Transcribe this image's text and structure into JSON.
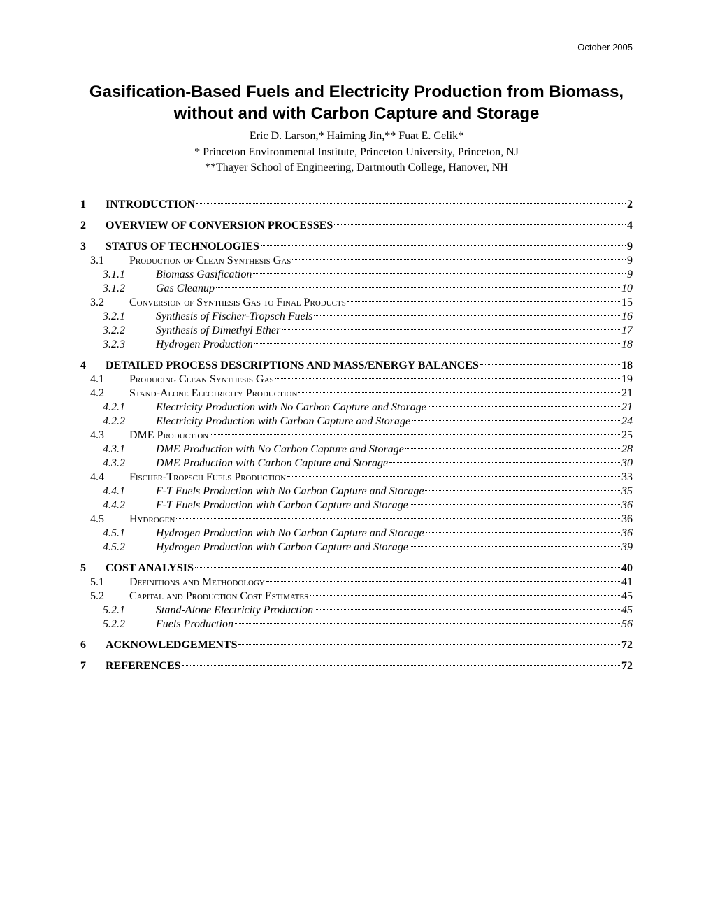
{
  "header": {
    "date": "October 2005"
  },
  "title": "Gasification-Based Fuels and Electricity Production from Biomass, without and with Carbon Capture and Storage",
  "authors": "Eric D. Larson,* Haiming Jin,** Fuat E. Celik*",
  "affiliations": [
    "* Princeton Environmental Institute, Princeton University, Princeton, NJ",
    "**Thayer School of Engineering, Dartmouth College, Hanover, NH"
  ],
  "styles": {
    "page_bg": "#ffffff",
    "text_color": "#000000",
    "title_font": "Arial",
    "title_fontsize_pt": 18,
    "title_weight": "bold",
    "body_font": "Times New Roman",
    "body_fontsize_pt": 12,
    "date_font": "Arial",
    "date_fontsize_pt": 10,
    "leader_style": "dotted",
    "l1_style": {
      "bold": true,
      "uppercase": true
    },
    "l2_style": {
      "small_caps": true
    },
    "l3_style": {
      "italic": true
    }
  },
  "toc": [
    {
      "level": 1,
      "num": "1",
      "label": "Introduction",
      "page": "2"
    },
    {
      "level": 1,
      "num": "2",
      "label": "Overview of Conversion Processes",
      "page": "4"
    },
    {
      "level": 1,
      "num": "3",
      "label": "Status of Technologies",
      "page": "9"
    },
    {
      "level": 2,
      "num": "3.1",
      "label": "Production of Clean Synthesis Gas",
      "page": "9"
    },
    {
      "level": 3,
      "num": "3.1.1",
      "label": "Biomass Gasification",
      "page": "9"
    },
    {
      "level": 3,
      "num": "3.1.2",
      "label": "Gas Cleanup",
      "page": "10"
    },
    {
      "level": 2,
      "num": "3.2",
      "label": "Conversion of Synthesis Gas to Final Products",
      "page": "15"
    },
    {
      "level": 3,
      "num": "3.2.1",
      "label": "Synthesis of Fischer-Tropsch Fuels",
      "page": "16"
    },
    {
      "level": 3,
      "num": "3.2.2",
      "label": "Synthesis of Dimethyl Ether",
      "page": "17"
    },
    {
      "level": 3,
      "num": "3.2.3",
      "label": "Hydrogen Production",
      "page": "18"
    },
    {
      "level": 1,
      "num": "4",
      "label": "Detailed Process Descriptions and Mass/Energy Balances",
      "page": "18"
    },
    {
      "level": 2,
      "num": "4.1",
      "label": "Producing Clean Synthesis Gas",
      "page": "19"
    },
    {
      "level": 2,
      "num": "4.2",
      "label": "Stand-Alone Electricity Production",
      "page": "21"
    },
    {
      "level": 3,
      "num": "4.2.1",
      "label": "Electricity Production with No Carbon Capture and Storage",
      "page": "21"
    },
    {
      "level": 3,
      "num": "4.2.2",
      "label": "Electricity Production with Carbon Capture and Storage",
      "page": "24"
    },
    {
      "level": 2,
      "num": "4.3",
      "label": "DME Production",
      "page": "25"
    },
    {
      "level": 3,
      "num": "4.3.1",
      "label": "DME Production with No Carbon Capture and Storage",
      "page": "28"
    },
    {
      "level": 3,
      "num": "4.3.2",
      "label": "DME Production with Carbon Capture and Storage",
      "page": "30"
    },
    {
      "level": 2,
      "num": "4.4",
      "label": "Fischer-Tropsch Fuels Production",
      "page": "33"
    },
    {
      "level": 3,
      "num": "4.4.1",
      "label": "F-T Fuels Production with No Carbon Capture and Storage",
      "page": "35"
    },
    {
      "level": 3,
      "num": "4.4.2",
      "label": "F-T Fuels Production with Carbon Capture and Storage",
      "page": "36"
    },
    {
      "level": 2,
      "num": "4.5",
      "label": "Hydrogen",
      "page": "36"
    },
    {
      "level": 3,
      "num": "4.5.1",
      "label": "Hydrogen Production with No Carbon Capture and Storage",
      "page": "36"
    },
    {
      "level": 3,
      "num": "4.5.2",
      "label": "Hydrogen Production with Carbon Capture and Storage",
      "page": "39"
    },
    {
      "level": 1,
      "num": "5",
      "label": "Cost Analysis",
      "page": "40"
    },
    {
      "level": 2,
      "num": "5.1",
      "label": "Definitions and Methodology",
      "page": "41"
    },
    {
      "level": 2,
      "num": "5.2",
      "label": "Capital and Production Cost Estimates",
      "page": "45"
    },
    {
      "level": 3,
      "num": "5.2.1",
      "label": "Stand-Alone Electricity Production",
      "page": "45"
    },
    {
      "level": 3,
      "num": "5.2.2",
      "label": "Fuels Production",
      "page": "56"
    },
    {
      "level": 1,
      "num": "6",
      "label": "Acknowledgements",
      "page": "72"
    },
    {
      "level": 1,
      "num": "7",
      "label": "References",
      "page": "72"
    }
  ]
}
